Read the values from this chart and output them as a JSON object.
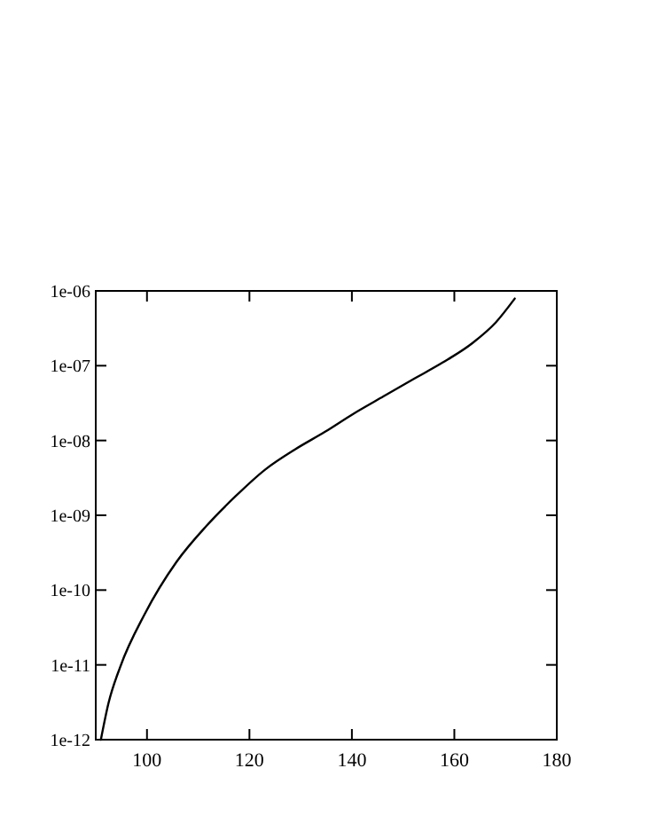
{
  "chart_data": {
    "type": "line",
    "log": "y",
    "grid": false,
    "marker": "none",
    "line_style": "solid",
    "xlim": [
      90,
      180
    ],
    "xticks": [
      100,
      120,
      140,
      160,
      180
    ],
    "ylim": [
      1e-12,
      1e-06
    ],
    "yticks": [
      {
        "value": 1e-12,
        "label": "1e-12"
      },
      {
        "value": 1e-11,
        "label": "1e-11"
      },
      {
        "value": 1e-10,
        "label": "1e-10"
      },
      {
        "value": 1e-09,
        "label": "1e-09"
      },
      {
        "value": 1e-08,
        "label": "1e-08"
      },
      {
        "value": 1e-07,
        "label": "1e-07"
      },
      {
        "value": 1e-06,
        "label": "1e-06"
      }
    ],
    "series": [
      {
        "color": "#000000",
        "x": [
          91.0,
          92.5,
          94.8,
          99.5,
          105.8,
          111.6,
          117.3,
          123.1,
          128.9,
          134.7,
          140.4,
          146.2,
          152.0,
          157.7,
          163.5,
          168.1,
          171.8
        ],
        "values": [
          1e-12,
          3.1e-12,
          9.5e-12,
          4.7e-11,
          2.4e-10,
          7.2e-10,
          1.8e-09,
          4.1e-09,
          7.6e-09,
          1.3e-08,
          2.3e-08,
          3.9e-08,
          6.6e-08,
          1.1e-07,
          2e-07,
          3.8e-07,
          7.9e-07
        ]
      }
    ]
  }
}
